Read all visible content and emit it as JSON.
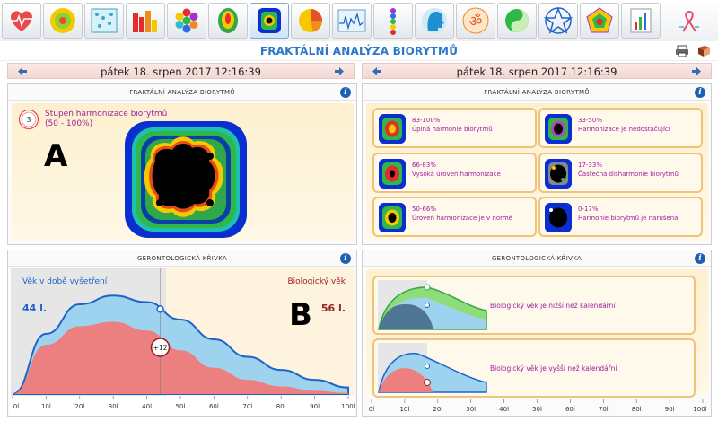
{
  "colors": {
    "accent": "#2a78c8",
    "blue_curve": "#1f63c9",
    "red_area": "#e87a7a",
    "purple_text": "#a020a0",
    "card_border": "#f0c27a"
  },
  "toolbar": {
    "tools": [
      {
        "name": "heart-tool-button",
        "icon": "heart-icon"
      },
      {
        "name": "sphere-tool-button",
        "icon": "sphere-icon"
      },
      {
        "name": "scatter-tool-button",
        "icon": "scatter-chart-icon"
      },
      {
        "name": "bars-tool-button",
        "icon": "bar-chart-icon"
      },
      {
        "name": "hexagons-tool-button",
        "icon": "hexagons-icon"
      },
      {
        "name": "brain-map-tool-button",
        "icon": "brain-map-icon"
      },
      {
        "name": "fractal-tool-button",
        "icon": "fractal-icon",
        "active": true
      },
      {
        "name": "pie-tool-button",
        "icon": "pie-chart-icon"
      },
      {
        "name": "wave-tool-button",
        "icon": "wave-monitor-icon"
      },
      {
        "name": "spine-tool-button",
        "icon": "spine-chakra-icon"
      },
      {
        "name": "head-tool-button",
        "icon": "head-profile-icon"
      },
      {
        "name": "om-tool-button",
        "icon": "om-icon"
      },
      {
        "name": "yinyang-tool-button",
        "icon": "yin-yang-icon"
      },
      {
        "name": "star-tool-button",
        "icon": "star-icon"
      },
      {
        "name": "pentagon-tool-button",
        "icon": "pentagon-radar-icon"
      },
      {
        "name": "report-tool-button",
        "icon": "report-chart-icon"
      },
      {
        "name": "ribbon-tool-button",
        "icon": "ribbon-icon"
      }
    ]
  },
  "page": {
    "title": "FRAKTÁLNÍ ANALÝZA BIORYTMŮ",
    "print_icon": "printer-icon",
    "book_icon": "book-icon"
  },
  "left_date": "pátek 18. srpen 2017 12:16:39",
  "right_date": "pátek 18. srpen 2017 12:16:39",
  "fractal_panel": {
    "header": "FRAKTÁLNÍ ANALÝZA BIORYTMŮ",
    "badge_value": "3",
    "label_line1": "Stupeň harmonizace biorytmů",
    "label_line2": "(50 - 100%)",
    "marker": "A"
  },
  "legend_panel": {
    "header": "FRAKTÁLNÍ ANALÝZA BIORYTMŮ",
    "items": [
      {
        "range": "83-100%",
        "text": "Úplná harmonie biorytmů"
      },
      {
        "range": "33-50%",
        "text": "Harmonizace je nedostačující"
      },
      {
        "range": "66-83%",
        "text": "Vysoká úroveň harmonizace"
      },
      {
        "range": "17-33%",
        "text": "Částečná disharmonie biorytmů"
      },
      {
        "range": "50-66%",
        "text": "Úroveň harmonizace je v normě"
      },
      {
        "range": "0-17%",
        "text": "Harmonie biorytmů je narušena"
      }
    ]
  },
  "geronto_panel": {
    "header": "GERONTOLOGICKÁ KŘIVKA",
    "age_label": "Věk v době vyšetření",
    "age_value": "44 l.",
    "bio_label": "Biologický věk",
    "bio_value": "56 l.",
    "diff_badge": "+12",
    "marker": "B",
    "x_ticks": [
      "0l",
      "10l",
      "20l",
      "30l",
      "40l",
      "50l",
      "60l",
      "70l",
      "80l",
      "90l",
      "100l"
    ]
  },
  "geronto_legend_panel": {
    "header": "GERONTOLOGICKÁ KŘIVKA",
    "card1_text": "Biologický věk je nižší než kalendářní",
    "card2_text": "Biologický věk je vyšší než kalendářní",
    "x_ticks": [
      "0l",
      "10l",
      "20l",
      "30l",
      "40l",
      "50l",
      "60l",
      "70l",
      "80l",
      "90l",
      "100l"
    ]
  },
  "chart_data": {
    "type": "area",
    "x": [
      0,
      10,
      20,
      30,
      40,
      50,
      60,
      70,
      80,
      90,
      100
    ],
    "xlim": [
      0,
      100
    ],
    "series": [
      {
        "values": [
          0,
          55,
          82,
          90,
          84,
          68,
          50,
          34,
          22,
          13,
          6
        ]
      },
      {
        "values": [
          0,
          45,
          62,
          66,
          58,
          40,
          24,
          13,
          7,
          3,
          1
        ]
      }
    ],
    "age_marker": 44,
    "bio_marker": 56
  }
}
